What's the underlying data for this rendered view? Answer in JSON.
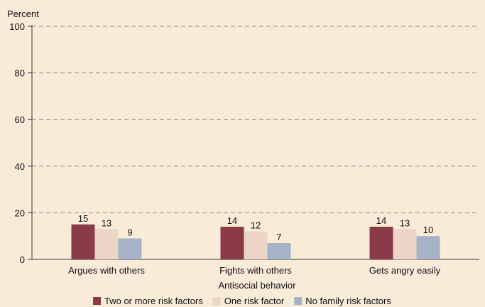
{
  "chart_data": {
    "type": "bar",
    "ylabel": "Percent",
    "xlabel": "Antisocial behavior",
    "ylim": [
      0,
      100
    ],
    "yticks": [
      0,
      20,
      40,
      60,
      80,
      100
    ],
    "grid": true,
    "legend_position": "bottom",
    "categories": [
      "Argues with others",
      "Fights with others",
      "Gets angry easily"
    ],
    "series": [
      {
        "name": "Two or more risk factors",
        "color": "#8b3a47",
        "values": [
          15,
          14,
          14
        ]
      },
      {
        "name": "One risk factor",
        "color": "#ecd5c6",
        "values": [
          13,
          12,
          13
        ]
      },
      {
        "name": "No family risk factors",
        "color": "#a6b2c6",
        "values": [
          9,
          7,
          10
        ]
      }
    ]
  }
}
